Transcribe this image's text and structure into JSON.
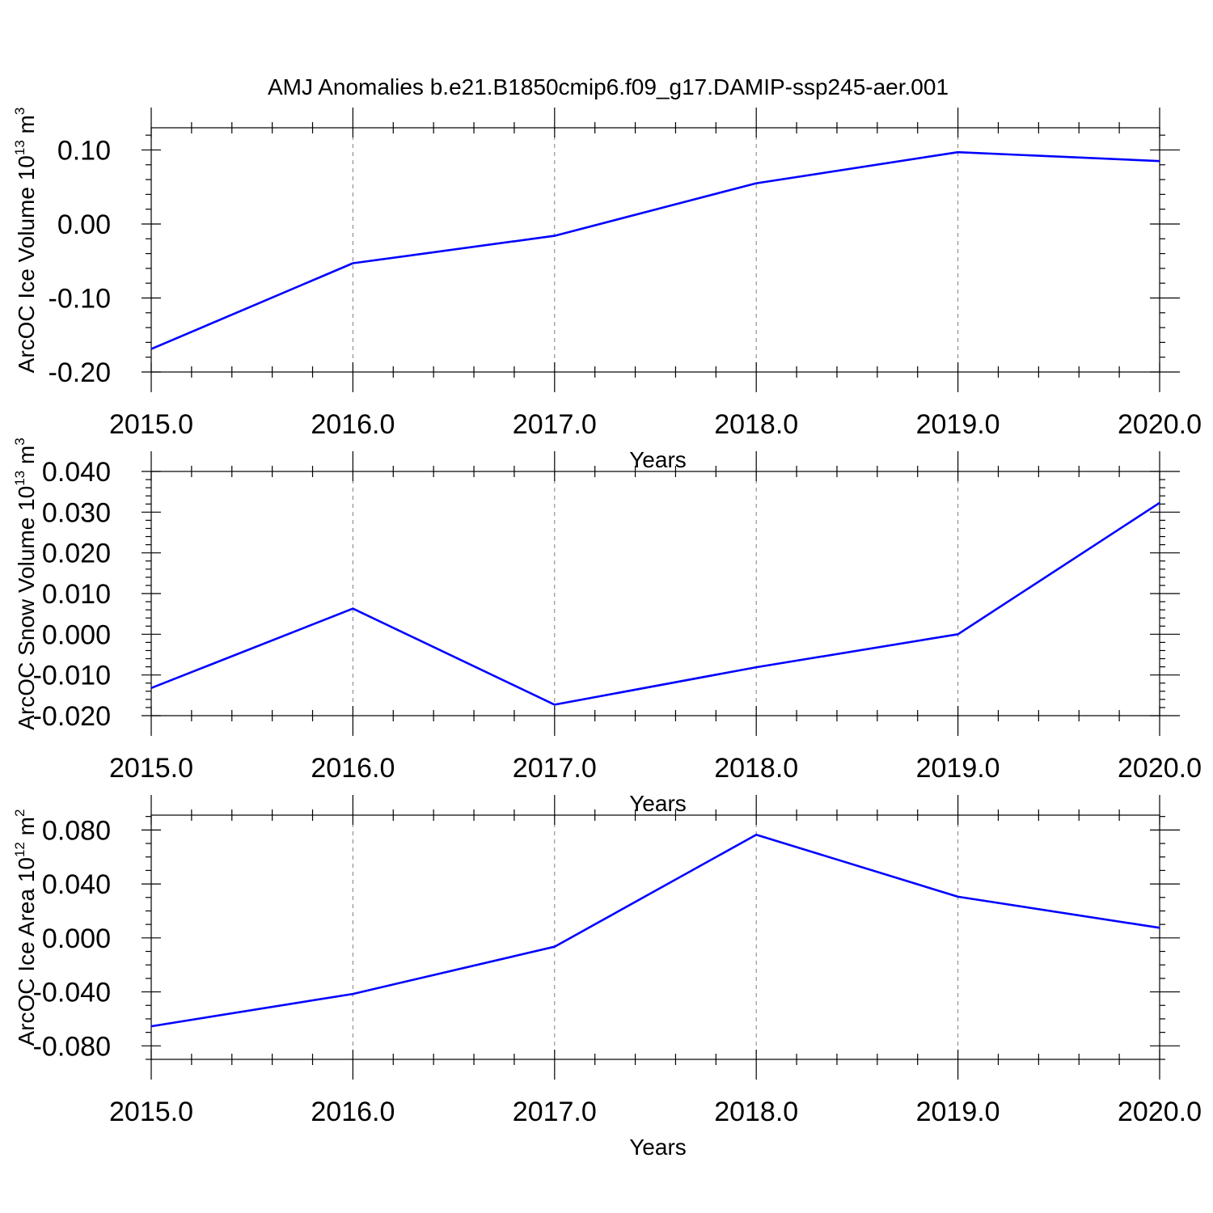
{
  "title": "AMJ Anomalies b.e21.B1850cmip6.f09_g17.DAMIP-ssp245-aer.001",
  "line_color": "#0000ff",
  "chart_data": [
    {
      "type": "line",
      "ylabel": "ArcOC Ice Volume 10",
      "ylabel_exponent": "13",
      "ylabel_unit": " m",
      "ylabel_unit_exponent": "3",
      "xlabel": "Years",
      "xlim": [
        2015,
        2020
      ],
      "ylim": [
        -0.2,
        0.13
      ],
      "x_ticks": [
        2015,
        2016,
        2017,
        2018,
        2019,
        2020
      ],
      "x_tick_labels": [
        "2015.0",
        "2016.0",
        "2017.0",
        "2018.0",
        "2019.0",
        "2020.0"
      ],
      "y_ticks": [
        -0.2,
        -0.1,
        0.0,
        0.1
      ],
      "y_tick_labels": [
        "-0.20",
        "-0.10",
        "0.00",
        "0.10"
      ],
      "y_minor_step": 0.02,
      "x_minor_step": 0.2,
      "grid": "vertical-dashed",
      "x": [
        2015,
        2016,
        2017,
        2018,
        2019,
        2020
      ],
      "y": [
        -0.169,
        -0.053,
        -0.016,
        0.055,
        0.097,
        0.085
      ]
    },
    {
      "type": "line",
      "ylabel": "ArcOC Snow Volume 10",
      "ylabel_exponent": "13",
      "ylabel_unit": " m",
      "ylabel_unit_exponent": "3",
      "xlabel": "Years",
      "xlim": [
        2015,
        2020
      ],
      "ylim": [
        -0.02,
        0.04
      ],
      "x_ticks": [
        2015,
        2016,
        2017,
        2018,
        2019,
        2020
      ],
      "x_tick_labels": [
        "2015.0",
        "2016.0",
        "2017.0",
        "2018.0",
        "2019.0",
        "2020.0"
      ],
      "y_ticks": [
        -0.02,
        -0.01,
        0.0,
        0.01,
        0.02,
        0.03,
        0.04
      ],
      "y_tick_labels": [
        "-0.020",
        "-0.010",
        "0.000",
        "0.010",
        "0.020",
        "0.030",
        "0.040"
      ],
      "y_minor_step": 0.002,
      "x_minor_step": 0.2,
      "grid": "vertical-dashed",
      "x": [
        2015,
        2016,
        2017,
        2018,
        2019,
        2020
      ],
      "y": [
        -0.0132,
        0.0063,
        -0.0173,
        -0.0081,
        0.0,
        0.0323
      ]
    },
    {
      "type": "line",
      "ylabel": "ArcOC Ice Area 10",
      "ylabel_exponent": "12",
      "ylabel_unit": " m",
      "ylabel_unit_exponent": "2",
      "xlabel": "Years",
      "xlim": [
        2015,
        2020
      ],
      "ylim": [
        -0.09,
        0.091
      ],
      "x_ticks": [
        2015,
        2016,
        2017,
        2018,
        2019,
        2020
      ],
      "x_tick_labels": [
        "2015.0",
        "2016.0",
        "2017.0",
        "2018.0",
        "2019.0",
        "2020.0"
      ],
      "y_ticks": [
        -0.08,
        -0.04,
        0.0,
        0.04,
        0.08
      ],
      "y_tick_labels": [
        "-0.080",
        "-0.040",
        "0.000",
        "0.040",
        "0.080"
      ],
      "y_minor_step": 0.01,
      "x_minor_step": 0.2,
      "grid": "vertical-dashed",
      "x": [
        2015,
        2016,
        2017,
        2018,
        2019,
        2020
      ],
      "y": [
        -0.0655,
        -0.0415,
        -0.0065,
        0.0765,
        0.0305,
        0.0075
      ]
    }
  ]
}
